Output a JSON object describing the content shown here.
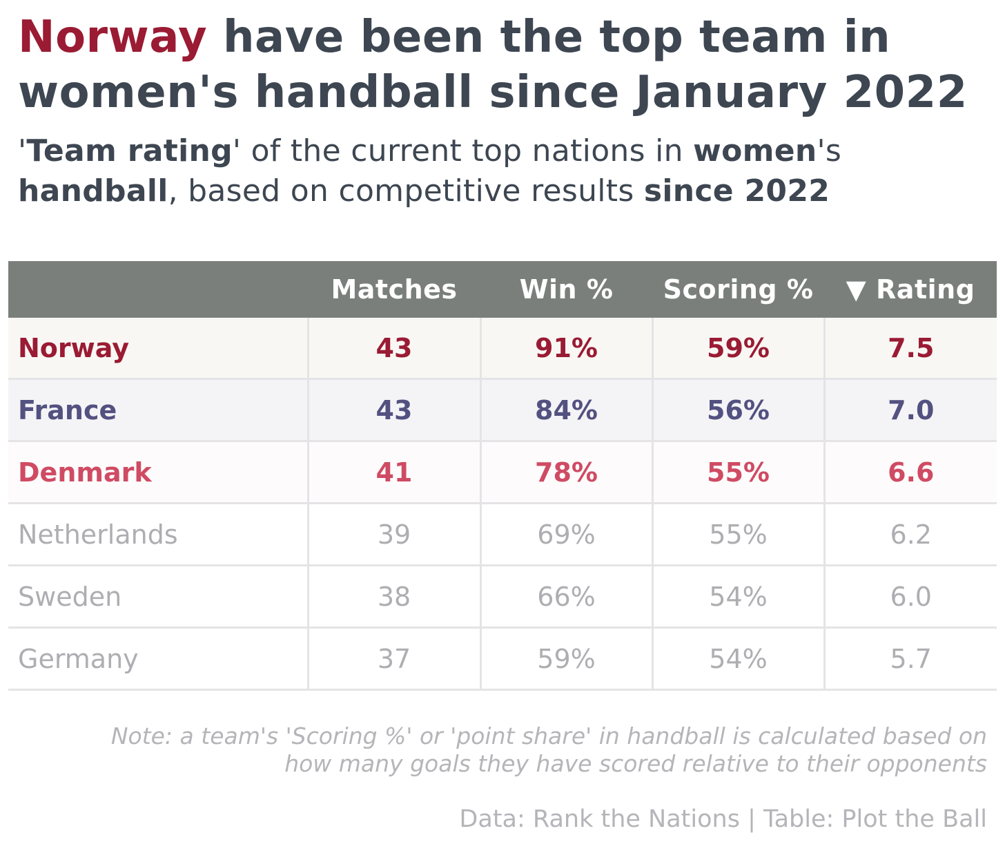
{
  "title": {
    "highlight": "Norway",
    "rest": " have been the top team in women's handball since January 2022"
  },
  "subtitle": {
    "p1": "'",
    "b1": "Team rating",
    "p2": "' of the current top nations in ",
    "b2": "women",
    "p3": "'s ",
    "b3": "handball",
    "p4": ", based on competitive results ",
    "b4": "since 2022"
  },
  "colors": {
    "norway": "#9a1b33",
    "france": "#535180",
    "denmark": "#cf4b63",
    "muted": "#aeaeb2",
    "header_bg": "#7a7f7c",
    "text": "#3d4651"
  },
  "chart_data": {
    "type": "table",
    "columns": [
      "",
      "Matches",
      "Win %",
      "Scoring %",
      "▼ Rating"
    ],
    "rows": [
      {
        "team": "Norway",
        "matches": "43",
        "win": "91%",
        "scoring": "59%",
        "rating": "7.5"
      },
      {
        "team": "France",
        "matches": "43",
        "win": "84%",
        "scoring": "56%",
        "rating": "7.0"
      },
      {
        "team": "Denmark",
        "matches": "41",
        "win": "78%",
        "scoring": "55%",
        "rating": "6.6"
      },
      {
        "team": "Netherlands",
        "matches": "39",
        "win": "69%",
        "scoring": "55%",
        "rating": "6.2"
      },
      {
        "team": "Sweden",
        "matches": "38",
        "win": "66%",
        "scoring": "54%",
        "rating": "6.0"
      },
      {
        "team": "Germany",
        "matches": "37",
        "win": "59%",
        "scoring": "54%",
        "rating": "5.7"
      }
    ],
    "sort": "Rating descending"
  },
  "note": {
    "line1": "Note: a team's 'Scoring %' or 'point share' in handball is calculated based on",
    "line2": "how many goals they have scored relative to their opponents"
  },
  "source": "Data: Rank the Nations | Table: Plot the Ball"
}
